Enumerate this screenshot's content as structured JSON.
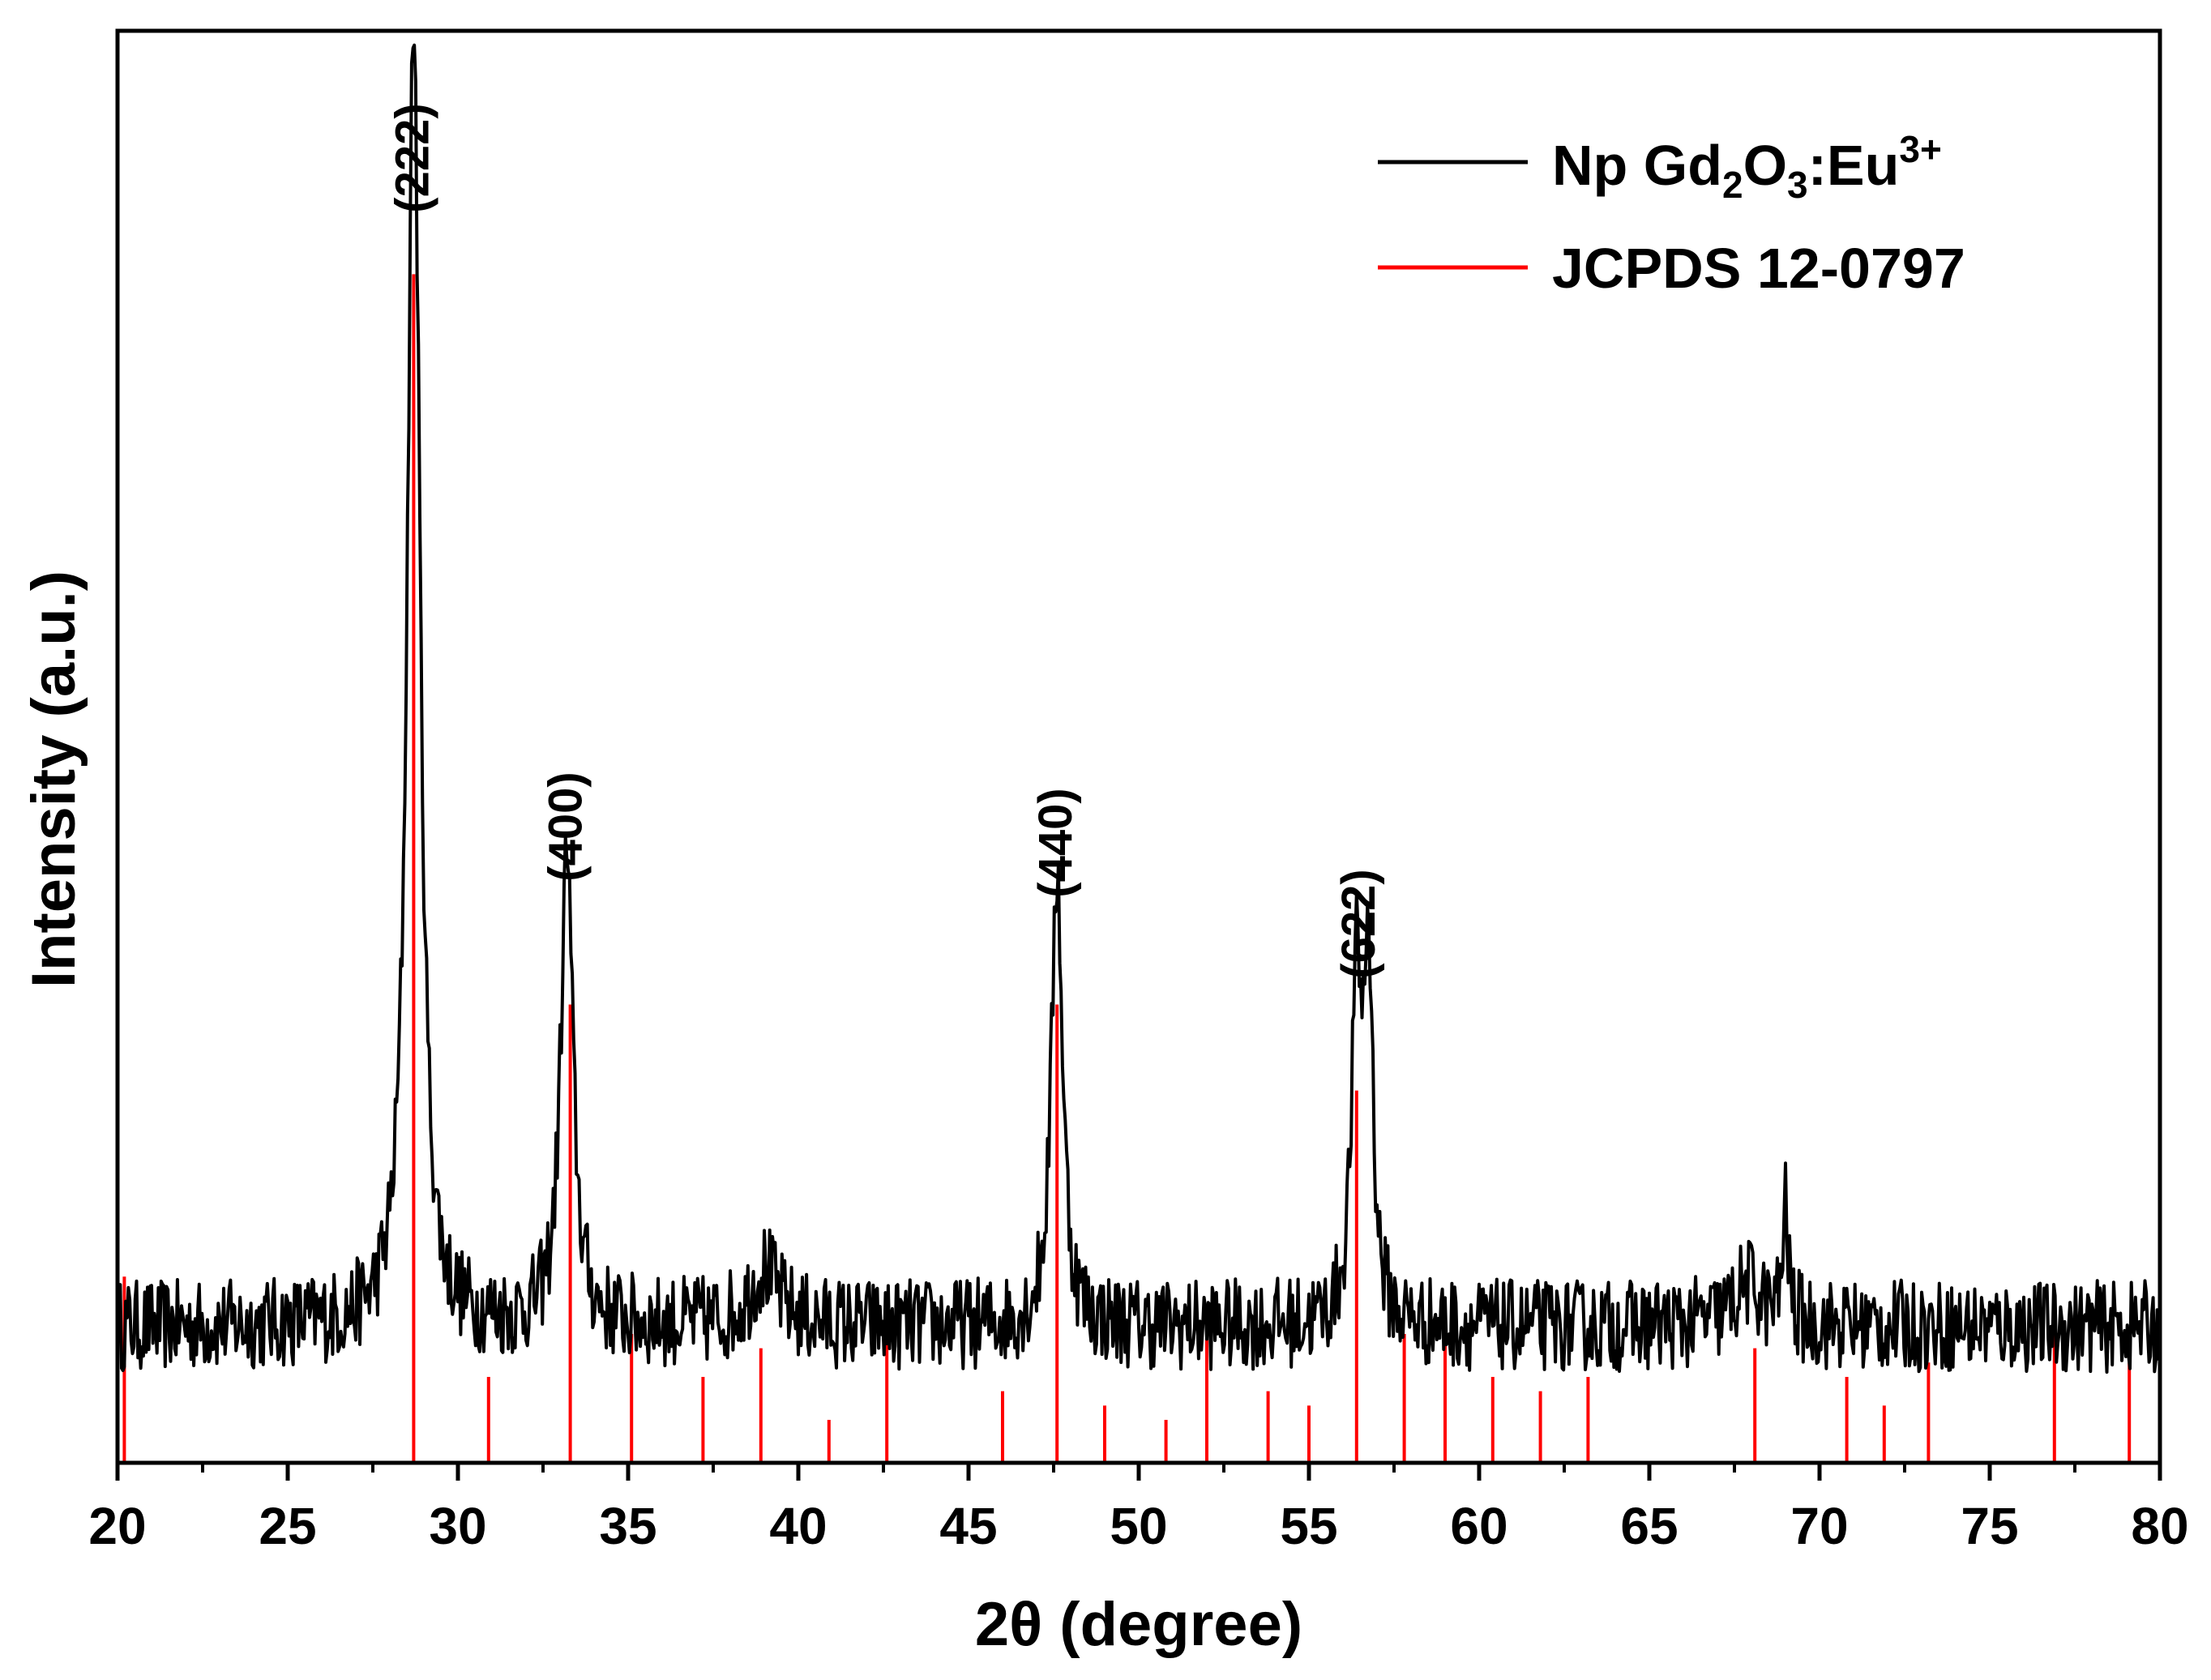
{
  "chart_data": {
    "type": "line",
    "xlabel": "2θ (degree)",
    "ylabel": "Intensity (a.u.)",
    "xlim": [
      20,
      80
    ],
    "x_ticks": [
      20,
      25,
      30,
      35,
      40,
      45,
      50,
      55,
      60,
      65,
      70,
      75,
      80
    ],
    "y_ticks_shown": false,
    "grid": false,
    "legend_position": "top-right",
    "legend": [
      {
        "series": "sample",
        "color": "#000000",
        "text_main": "Np Gd",
        "sub1": "2",
        "text_mid": "O",
        "sub2": "3",
        "text_tail": ":Eu",
        "sup": "3+"
      },
      {
        "series": "reference",
        "color": "#ff0000",
        "text": "JCPDS 12-0797"
      }
    ],
    "peak_annotations": [
      {
        "label": "(222)",
        "x": 28.7
      },
      {
        "label": "(400)",
        "x": 33.2
      },
      {
        "label": "(440)",
        "x": 47.6
      },
      {
        "label": "(622)",
        "x": 56.5
      }
    ],
    "series": [
      {
        "id": "sample",
        "color": "#000000",
        "baseline": 0.095,
        "noise": 0.032,
        "peaks": [
          {
            "x": 28.7,
            "height": 0.92,
            "width": 0.22
          },
          {
            "x": 33.2,
            "height": 0.33,
            "width": 0.22
          },
          {
            "x": 47.6,
            "height": 0.32,
            "width": 0.2
          },
          {
            "x": 56.4,
            "height": 0.23,
            "width": 0.18
          },
          {
            "x": 56.75,
            "height": 0.24,
            "width": 0.16
          },
          {
            "x": 69.0,
            "height": 0.08,
            "width": 0.1
          },
          {
            "x": 39.0,
            "height": 0.04,
            "width": 0.5
          },
          {
            "x": 67.9,
            "height": 0.03,
            "width": 0.5
          }
        ]
      },
      {
        "id": "reference",
        "color": "#ff0000",
        "lines": [
          {
            "x": 20.2,
            "intensity": 0.13
          },
          {
            "x": 28.7,
            "intensity": 0.83
          },
          {
            "x": 30.9,
            "intensity": 0.06
          },
          {
            "x": 33.3,
            "intensity": 0.32
          },
          {
            "x": 35.1,
            "intensity": 0.09
          },
          {
            "x": 37.2,
            "intensity": 0.06
          },
          {
            "x": 38.9,
            "intensity": 0.08
          },
          {
            "x": 40.9,
            "intensity": 0.03
          },
          {
            "x": 42.6,
            "intensity": 0.11
          },
          {
            "x": 46.0,
            "intensity": 0.05
          },
          {
            "x": 47.6,
            "intensity": 0.32
          },
          {
            "x": 49.0,
            "intensity": 0.04
          },
          {
            "x": 50.8,
            "intensity": 0.03
          },
          {
            "x": 52.0,
            "intensity": 0.09
          },
          {
            "x": 53.8,
            "intensity": 0.05
          },
          {
            "x": 55.0,
            "intensity": 0.04
          },
          {
            "x": 56.4,
            "intensity": 0.26
          },
          {
            "x": 57.8,
            "intensity": 0.09
          },
          {
            "x": 59.0,
            "intensity": 0.09
          },
          {
            "x": 60.4,
            "intensity": 0.06
          },
          {
            "x": 61.8,
            "intensity": 0.05
          },
          {
            "x": 63.2,
            "intensity": 0.06
          },
          {
            "x": 68.1,
            "intensity": 0.08
          },
          {
            "x": 70.8,
            "intensity": 0.06
          },
          {
            "x": 71.9,
            "intensity": 0.04
          },
          {
            "x": 73.2,
            "intensity": 0.07
          },
          {
            "x": 76.9,
            "intensity": 0.1
          },
          {
            "x": 79.1,
            "intensity": 0.07
          }
        ]
      }
    ]
  }
}
